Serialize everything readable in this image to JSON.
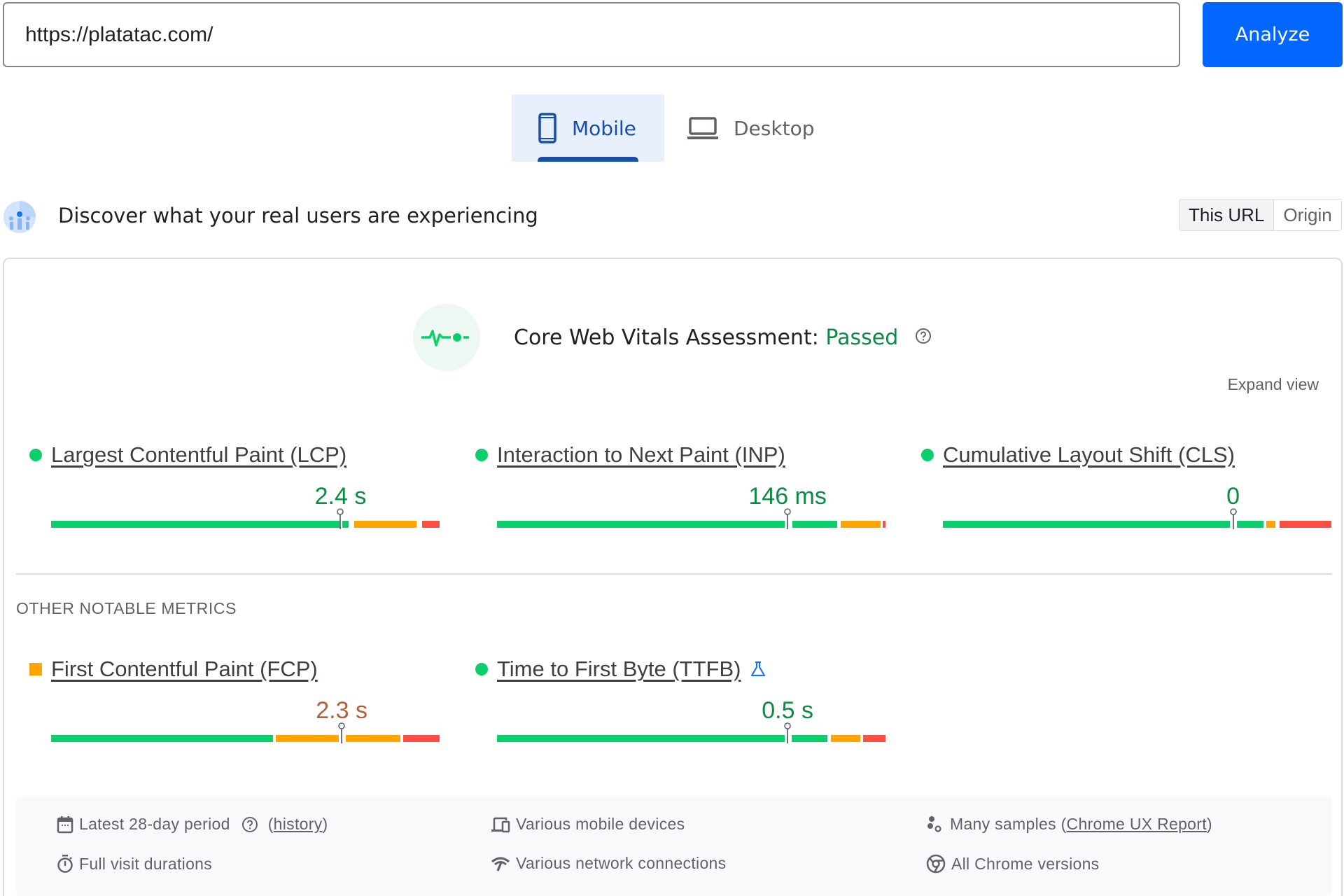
{
  "search": {
    "url_value": "https://platatac.com/",
    "analyze_label": "Analyze"
  },
  "tabs": [
    {
      "label": "Mobile",
      "icon": "smartphone-icon",
      "active": true
    },
    {
      "label": "Desktop",
      "icon": "laptop-icon",
      "active": false
    }
  ],
  "crux": {
    "title": "Discover what your real users are experiencing",
    "toggle": {
      "this_url": "This URL",
      "origin": "Origin",
      "selected": "This URL"
    }
  },
  "assessment": {
    "label": "Core Web Vitals Assessment:",
    "status": "Passed",
    "status_color": "#0d8a43",
    "expand_label": "Expand view"
  },
  "core_metrics": [
    {
      "name": "Largest Contentful Paint (LCP)",
      "value": "2.4 s",
      "rating": "good",
      "indicator": "green-dot",
      "segments": [
        {
          "from": 0,
          "to": 0.742,
          "color": "#0cce6b"
        },
        {
          "from": 0.75,
          "to": 0.765,
          "color": "#0cce6b"
        },
        {
          "from": 0.78,
          "to": 0.94,
          "color": "#ffa400"
        },
        {
          "from": 0.955,
          "to": 1.0,
          "color": "#ff4e42"
        }
      ],
      "marker": 0.745
    },
    {
      "name": "Interaction to Next Paint (INP)",
      "value": "146 ms",
      "rating": "good",
      "indicator": "green-dot",
      "segments": [
        {
          "from": 0,
          "to": 0.74,
          "color": "#0cce6b"
        },
        {
          "from": 0.76,
          "to": 0.875,
          "color": "#0cce6b"
        },
        {
          "from": 0.885,
          "to": 0.987,
          "color": "#ffa400"
        },
        {
          "from": 0.993,
          "to": 1.0,
          "color": "#ff4e42"
        }
      ],
      "marker": 0.748
    },
    {
      "name": "Cumulative Layout Shift (CLS)",
      "value": "0",
      "rating": "good",
      "indicator": "green-dot",
      "segments": [
        {
          "from": 0,
          "to": 0.738,
          "color": "#0cce6b"
        },
        {
          "from": 0.757,
          "to": 0.826,
          "color": "#0cce6b"
        },
        {
          "from": 0.833,
          "to": 0.856,
          "color": "#ffa400"
        },
        {
          "from": 0.866,
          "to": 1.0,
          "color": "#ff4e42"
        }
      ],
      "marker": 0.747
    }
  ],
  "other_section_label": "OTHER NOTABLE METRICS",
  "other_metrics": [
    {
      "name": "First Contentful Paint (FCP)",
      "value": "2.3 s",
      "rating": "needs-improvement",
      "indicator": "orange-square",
      "value_color": "#b0603a",
      "segments": [
        {
          "from": 0,
          "to": 0.572,
          "color": "#0cce6b"
        },
        {
          "from": 0.579,
          "to": 0.74,
          "color": "#ffa400"
        },
        {
          "from": 0.758,
          "to": 0.899,
          "color": "#ffa400"
        },
        {
          "from": 0.906,
          "to": 1.0,
          "color": "#ff4e42"
        }
      ],
      "marker": 0.748
    },
    {
      "name": "Time to First Byte (TTFB)",
      "value": "0.5 s",
      "rating": "good",
      "indicator": "green-dot",
      "experimental_icon": "flask-icon",
      "segments": [
        {
          "from": 0,
          "to": 0.74,
          "color": "#0cce6b"
        },
        {
          "from": 0.758,
          "to": 0.851,
          "color": "#0cce6b"
        },
        {
          "from": 0.859,
          "to": 0.935,
          "color": "#ffa400"
        },
        {
          "from": 0.943,
          "to": 1.0,
          "color": "#ff4e42"
        }
      ],
      "marker": 0.748
    }
  ],
  "footer": {
    "period": "Latest 28-day period",
    "history_link": "history",
    "devices": "Various mobile devices",
    "samples_prefix": "Many samples (",
    "samples_link": "Chrome UX Report",
    "samples_suffix": ")",
    "durations": "Full visit durations",
    "network": "Various network connections",
    "chrome": "All Chrome versions"
  },
  "colors": {
    "good": "#0cce6b",
    "average": "#ffa400",
    "poor": "#ff4e42",
    "good_text": "#0d8a43",
    "accent": "#0366ff",
    "tab_active": "#174ea6"
  }
}
